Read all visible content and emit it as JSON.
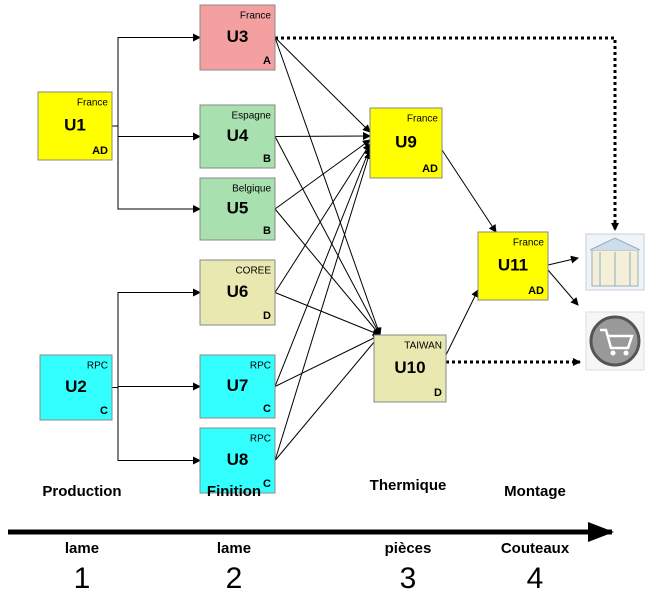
{
  "nodes": [
    {
      "id": "U1",
      "country": "France",
      "code": "AD"
    },
    {
      "id": "U2",
      "country": "RPC",
      "code": "C"
    },
    {
      "id": "U3",
      "country": "France",
      "code": "A"
    },
    {
      "id": "U4",
      "country": "Espagne",
      "code": "B"
    },
    {
      "id": "U5",
      "country": "Belgique",
      "code": "B"
    },
    {
      "id": "U6",
      "country": "COREE",
      "code": "D"
    },
    {
      "id": "U7",
      "country": "RPC",
      "code": "C"
    },
    {
      "id": "U8",
      "country": "RPC",
      "code": "C"
    },
    {
      "id": "U9",
      "country": "France",
      "code": "AD"
    },
    {
      "id": "U10",
      "country": "TAIWAN",
      "code": "D"
    },
    {
      "id": "U11",
      "country": "France",
      "code": "AD"
    }
  ],
  "stages": [
    {
      "title": "Production",
      "subtitle": "lame",
      "number": 1
    },
    {
      "title": "Finition",
      "subtitle": "lame",
      "number": 2
    },
    {
      "title": "Thermique",
      "subtitle": "pièces",
      "number": 3
    },
    {
      "title": "Montage",
      "subtitle": "Couteaux",
      "number": 4
    }
  ]
}
